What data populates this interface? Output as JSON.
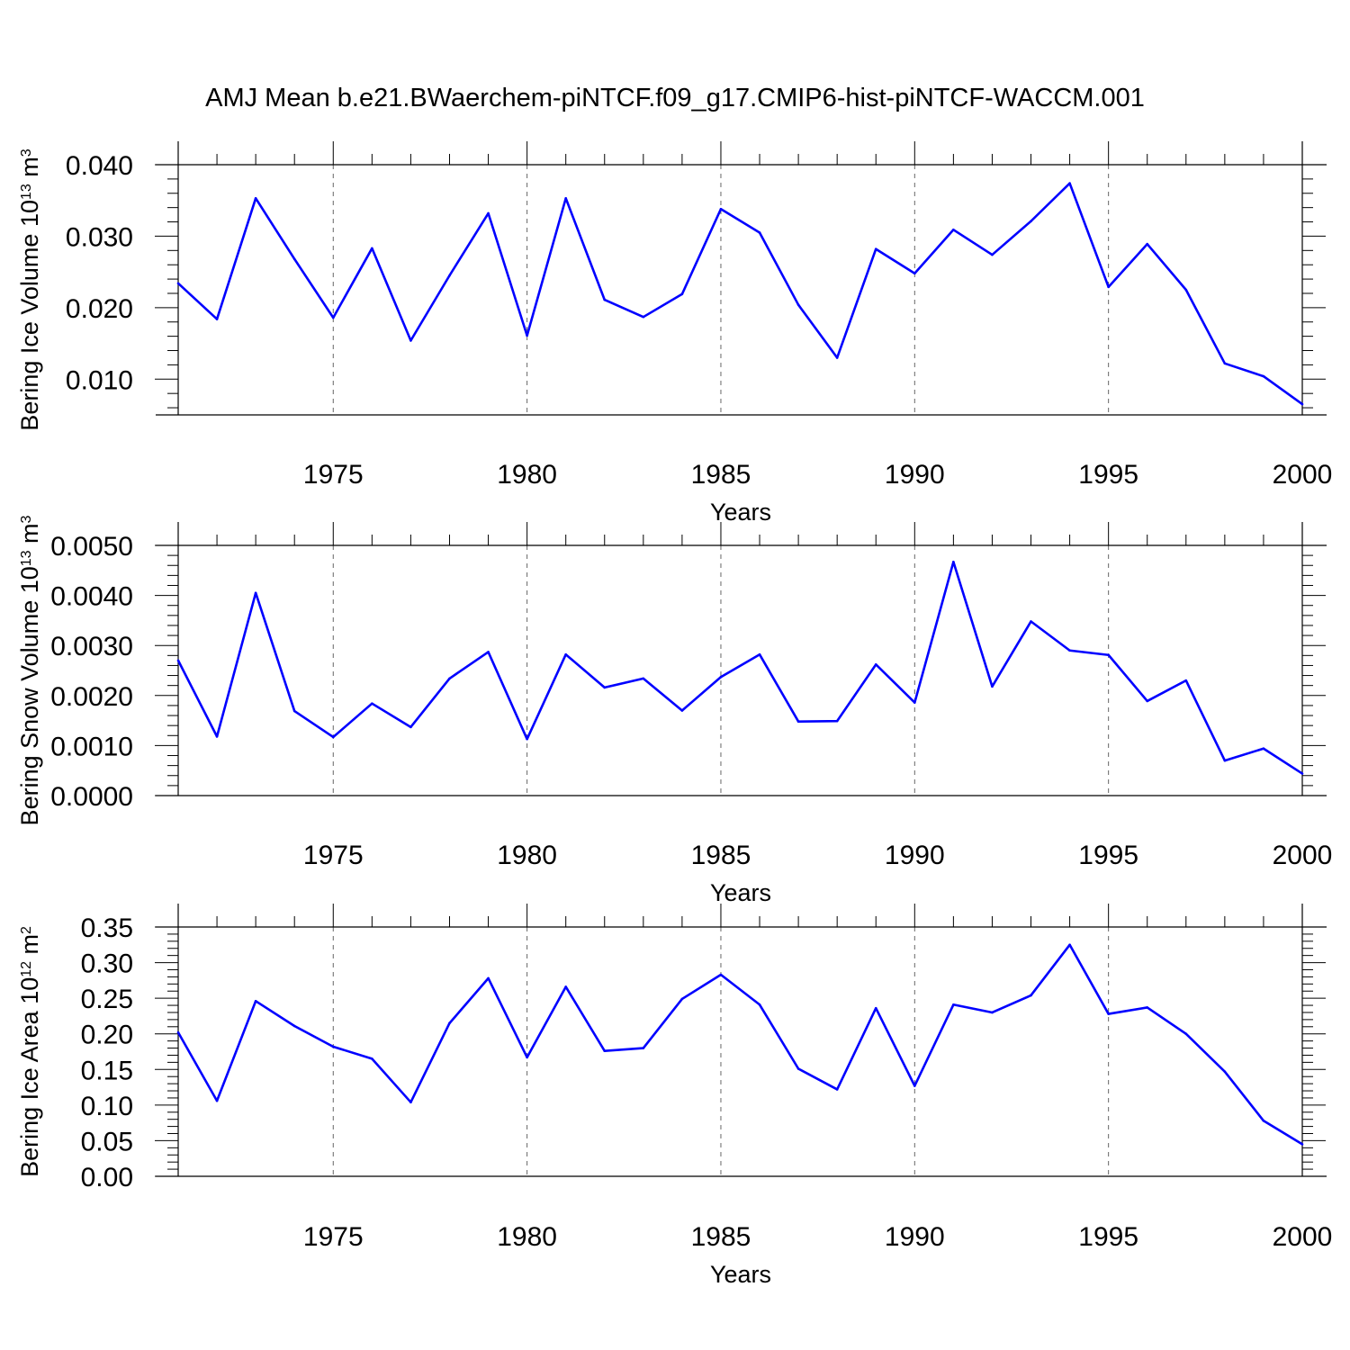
{
  "title": "AMJ Mean b.e21.BWaerchem-piNTCF.f09_g17.CMIP6-hist-piNTCF-WACCM.001",
  "colors": {
    "line": "#0000ff",
    "axis": "#000000",
    "grid": "#666666",
    "background": "#ffffff"
  },
  "chart_data": [
    {
      "type": "line",
      "name": "ice-volume",
      "ylabel_text": "Bering Ice Volume 10",
      "ylabel_exp": "13",
      "ylabel_unit": " m",
      "ylabel_unit_exp": "3",
      "xlabel": "Years",
      "xlim": [
        1971,
        2000
      ],
      "ylim": [
        0.005,
        0.04
      ],
      "yticks": [
        0.01,
        0.02,
        0.03,
        0.04
      ],
      "ytick_labels": [
        "0.010",
        "0.020",
        "0.030",
        "0.040"
      ],
      "xticks": [
        1975,
        1980,
        1985,
        1990,
        1995,
        2000
      ],
      "xtick_labels": [
        "1975",
        "1980",
        "1985",
        "1990",
        "1995",
        "2000"
      ],
      "grid": "vertical-dashed",
      "x": [
        1971,
        1972,
        1973,
        1974,
        1975,
        1976,
        1977,
        1978,
        1979,
        1980,
        1981,
        1982,
        1983,
        1984,
        1985,
        1986,
        1987,
        1988,
        1989,
        1990,
        1991,
        1992,
        1993,
        1994,
        1995,
        1996,
        1997,
        1998,
        1999,
        2000
      ],
      "values": [
        0.0234,
        0.0184,
        0.0353,
        0.0268,
        0.0186,
        0.0283,
        0.0154,
        0.0245,
        0.0332,
        0.0161,
        0.0353,
        0.0211,
        0.0187,
        0.0219,
        0.0338,
        0.0305,
        0.0204,
        0.013,
        0.0282,
        0.0248,
        0.0309,
        0.0274,
        0.0321,
        0.0374,
        0.0229,
        0.0289,
        0.0225,
        0.0122,
        0.0104,
        0.0065
      ]
    },
    {
      "type": "line",
      "name": "snow-volume",
      "ylabel_text": "Bering Snow Volume 10",
      "ylabel_exp": "13",
      "ylabel_unit": " m",
      "ylabel_unit_exp": "3",
      "xlabel": "Years",
      "xlim": [
        1971,
        2000
      ],
      "ylim": [
        0.0,
        0.005
      ],
      "yticks": [
        0.0,
        0.001,
        0.002,
        0.003,
        0.004,
        0.005
      ],
      "ytick_labels": [
        "0.0000",
        "0.0010",
        "0.0020",
        "0.0030",
        "0.0040",
        "0.0050"
      ],
      "xticks": [
        1975,
        1980,
        1985,
        1990,
        1995,
        2000
      ],
      "xtick_labels": [
        "1975",
        "1980",
        "1985",
        "1990",
        "1995",
        "2000"
      ],
      "grid": "vertical-dashed",
      "x": [
        1971,
        1972,
        1973,
        1974,
        1975,
        1976,
        1977,
        1978,
        1979,
        1980,
        1981,
        1982,
        1983,
        1984,
        1985,
        1986,
        1987,
        1988,
        1989,
        1990,
        1991,
        1992,
        1993,
        1994,
        1995,
        1996,
        1997,
        1998,
        1999,
        2000
      ],
      "values": [
        0.0027,
        0.00118,
        0.00405,
        0.00169,
        0.00117,
        0.00184,
        0.00137,
        0.00234,
        0.00287,
        0.00113,
        0.00282,
        0.00216,
        0.00234,
        0.0017,
        0.00237,
        0.00282,
        0.00148,
        0.00149,
        0.00262,
        0.00186,
        0.00467,
        0.00218,
        0.00348,
        0.0029,
        0.00281,
        0.00189,
        0.0023,
        0.0007,
        0.00094,
        0.00044
      ]
    },
    {
      "type": "line",
      "name": "ice-area",
      "ylabel_text": "Bering Ice Area 10",
      "ylabel_exp": "12",
      "ylabel_unit": " m",
      "ylabel_unit_exp": "2",
      "xlabel": "Years",
      "xlim": [
        1971,
        2000
      ],
      "ylim": [
        0.0,
        0.35
      ],
      "yticks": [
        0.0,
        0.05,
        0.1,
        0.15,
        0.2,
        0.25,
        0.3,
        0.35
      ],
      "ytick_labels": [
        "0.00",
        "0.05",
        "0.10",
        "0.15",
        "0.20",
        "0.25",
        "0.30",
        "0.35"
      ],
      "xticks": [
        1975,
        1980,
        1985,
        1990,
        1995,
        2000
      ],
      "xtick_labels": [
        "1975",
        "1980",
        "1985",
        "1990",
        "1995",
        "2000"
      ],
      "grid": "vertical-dashed",
      "x": [
        1971,
        1972,
        1973,
        1974,
        1975,
        1976,
        1977,
        1978,
        1979,
        1980,
        1981,
        1982,
        1983,
        1984,
        1985,
        1986,
        1987,
        1988,
        1989,
        1990,
        1991,
        1992,
        1993,
        1994,
        1995,
        1996,
        1997,
        1998,
        1999,
        2000
      ],
      "values": [
        0.202,
        0.106,
        0.246,
        0.211,
        0.182,
        0.165,
        0.104,
        0.215,
        0.278,
        0.167,
        0.266,
        0.176,
        0.18,
        0.249,
        0.283,
        0.241,
        0.151,
        0.122,
        0.236,
        0.127,
        0.241,
        0.23,
        0.254,
        0.325,
        0.228,
        0.237,
        0.2,
        0.147,
        0.078,
        0.045
      ]
    }
  ]
}
